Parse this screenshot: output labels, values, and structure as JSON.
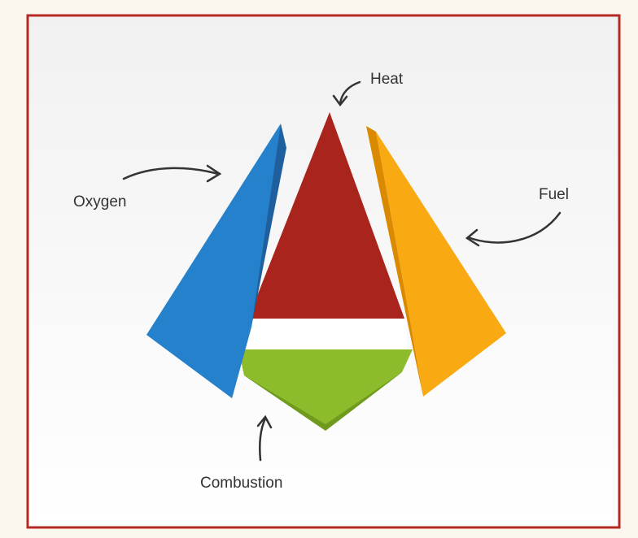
{
  "labels": {
    "heat": "Heat",
    "oxygen": "Oxygen",
    "fuel": "Fuel",
    "combustion": "Combustion"
  }
}
